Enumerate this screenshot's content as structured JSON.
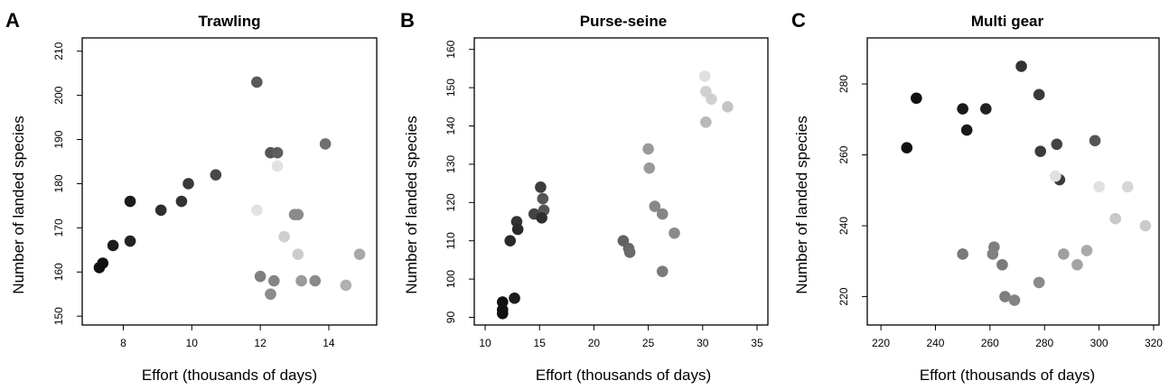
{
  "chart_data": [
    {
      "type": "scatter",
      "panel_label": "A",
      "title": "Trawling",
      "xlabel": "Effort (thousands of days)",
      "ylabel": "Number of landed species",
      "xlim": [
        6.8,
        15.4
      ],
      "ylim": [
        148,
        213
      ],
      "xticks": [
        8,
        10,
        12,
        14
      ],
      "yticks": [
        150,
        160,
        170,
        180,
        190,
        200,
        210
      ],
      "grid": false,
      "points": [
        {
          "x": 7.3,
          "y": 161,
          "shade": "#111111"
        },
        {
          "x": 7.4,
          "y": 162,
          "shade": "#111111"
        },
        {
          "x": 7.7,
          "y": 166,
          "shade": "#1c1c1c"
        },
        {
          "x": 8.2,
          "y": 167,
          "shade": "#232323"
        },
        {
          "x": 8.2,
          "y": 176,
          "shade": "#1c1c1c"
        },
        {
          "x": 9.1,
          "y": 174,
          "shade": "#2e2e2e"
        },
        {
          "x": 9.7,
          "y": 176,
          "shade": "#333333"
        },
        {
          "x": 9.9,
          "y": 180,
          "shade": "#3a3a3a"
        },
        {
          "x": 10.7,
          "y": 182,
          "shade": "#484848"
        },
        {
          "x": 11.9,
          "y": 203,
          "shade": "#5a5a5a"
        },
        {
          "x": 12.3,
          "y": 187,
          "shade": "#555555"
        },
        {
          "x": 12.5,
          "y": 187,
          "shade": "#5e5e5e"
        },
        {
          "x": 13.9,
          "y": 189,
          "shade": "#707070"
        },
        {
          "x": 12.5,
          "y": 184,
          "shade": "#e2e2e2"
        },
        {
          "x": 11.9,
          "y": 174,
          "shade": "#e2e2e2"
        },
        {
          "x": 12.7,
          "y": 168,
          "shade": "#cfcfcf"
        },
        {
          "x": 13.0,
          "y": 173,
          "shade": "#8a8a8a"
        },
        {
          "x": 13.1,
          "y": 173,
          "shade": "#8a8a8a"
        },
        {
          "x": 13.1,
          "y": 164,
          "shade": "#cccccc"
        },
        {
          "x": 12.0,
          "y": 159,
          "shade": "#808080"
        },
        {
          "x": 12.4,
          "y": 158,
          "shade": "#858585"
        },
        {
          "x": 12.3,
          "y": 155,
          "shade": "#8c8c8c"
        },
        {
          "x": 13.2,
          "y": 158,
          "shade": "#9a9a9a"
        },
        {
          "x": 13.6,
          "y": 158,
          "shade": "#8a8a8a"
        },
        {
          "x": 14.5,
          "y": 157,
          "shade": "#b0b0b0"
        },
        {
          "x": 14.9,
          "y": 164,
          "shade": "#a8a8a8"
        }
      ]
    },
    {
      "type": "scatter",
      "panel_label": "B",
      "title": "Purse-seine",
      "xlabel": "Effort (thousands of days)",
      "ylabel": "Number of landed species",
      "xlim": [
        9,
        36
      ],
      "ylim": [
        88,
        163
      ],
      "xticks": [
        10,
        15,
        20,
        25,
        30,
        35
      ],
      "yticks": [
        90,
        100,
        110,
        120,
        130,
        140,
        150,
        160
      ],
      "grid": false,
      "points": [
        {
          "x": 11.6,
          "y": 94,
          "shade": "#111111"
        },
        {
          "x": 11.6,
          "y": 92,
          "shade": "#111111"
        },
        {
          "x": 11.6,
          "y": 91,
          "shade": "#111111"
        },
        {
          "x": 12.7,
          "y": 95,
          "shade": "#1c1c1c"
        },
        {
          "x": 12.3,
          "y": 110,
          "shade": "#2a2a2a"
        },
        {
          "x": 12.9,
          "y": 115,
          "shade": "#333333"
        },
        {
          "x": 13.0,
          "y": 113,
          "shade": "#2a2a2a"
        },
        {
          "x": 14.5,
          "y": 117,
          "shade": "#444444"
        },
        {
          "x": 15.1,
          "y": 124,
          "shade": "#3c3c3c"
        },
        {
          "x": 15.3,
          "y": 121,
          "shade": "#555555"
        },
        {
          "x": 15.4,
          "y": 118,
          "shade": "#555555"
        },
        {
          "x": 15.2,
          "y": 116,
          "shade": "#2e2e2e"
        },
        {
          "x": 22.7,
          "y": 110,
          "shade": "#626262"
        },
        {
          "x": 23.2,
          "y": 108,
          "shade": "#666666"
        },
        {
          "x": 23.3,
          "y": 107,
          "shade": "#6a6a6a"
        },
        {
          "x": 25.0,
          "y": 134,
          "shade": "#9a9a9a"
        },
        {
          "x": 25.1,
          "y": 129,
          "shade": "#9a9a9a"
        },
        {
          "x": 25.6,
          "y": 119,
          "shade": "#888888"
        },
        {
          "x": 26.3,
          "y": 117,
          "shade": "#858585"
        },
        {
          "x": 26.3,
          "y": 102,
          "shade": "#7a7a7a"
        },
        {
          "x": 27.4,
          "y": 112,
          "shade": "#8a8a8a"
        },
        {
          "x": 30.2,
          "y": 153,
          "shade": "#e0e0e0"
        },
        {
          "x": 30.3,
          "y": 149,
          "shade": "#d0d0d0"
        },
        {
          "x": 30.8,
          "y": 147,
          "shade": "#d0d0d0"
        },
        {
          "x": 30.3,
          "y": 141,
          "shade": "#b8b8b8"
        },
        {
          "x": 32.3,
          "y": 145,
          "shade": "#c4c4c4"
        }
      ]
    },
    {
      "type": "scatter",
      "panel_label": "C",
      "title": "Multi gear",
      "xlabel": "Effort (thousands of days)",
      "ylabel": "Number of landed species",
      "xlim": [
        215,
        322
      ],
      "ylim": [
        212,
        293
      ],
      "xticks": [
        220,
        240,
        260,
        280,
        300,
        320
      ],
      "yticks": [
        220,
        240,
        260,
        280
      ],
      "grid": false,
      "points": [
        {
          "x": 229.5,
          "y": 262,
          "shade": "#111111"
        },
        {
          "x": 233,
          "y": 276,
          "shade": "#111111"
        },
        {
          "x": 250,
          "y": 273,
          "shade": "#1a1a1a"
        },
        {
          "x": 251.5,
          "y": 267,
          "shade": "#1a1a1a"
        },
        {
          "x": 258.5,
          "y": 273,
          "shade": "#222222"
        },
        {
          "x": 271.5,
          "y": 285,
          "shade": "#333333"
        },
        {
          "x": 278,
          "y": 277,
          "shade": "#3a3a3a"
        },
        {
          "x": 278.5,
          "y": 261,
          "shade": "#3a3a3a"
        },
        {
          "x": 284.5,
          "y": 263,
          "shade": "#444444"
        },
        {
          "x": 285.5,
          "y": 253,
          "shade": "#3c3c3c"
        },
        {
          "x": 284,
          "y": 254,
          "shade": "#e0e0e0"
        },
        {
          "x": 298.5,
          "y": 264,
          "shade": "#555555"
        },
        {
          "x": 300,
          "y": 251,
          "shade": "#e0e0e0"
        },
        {
          "x": 310.5,
          "y": 251,
          "shade": "#d6d6d6"
        },
        {
          "x": 306,
          "y": 242,
          "shade": "#c8c8c8"
        },
        {
          "x": 317,
          "y": 240,
          "shade": "#cacaca"
        },
        {
          "x": 250,
          "y": 232,
          "shade": "#7a7a7a"
        },
        {
          "x": 261.5,
          "y": 234,
          "shade": "#7e7e7e"
        },
        {
          "x": 261,
          "y": 232,
          "shade": "#808080"
        },
        {
          "x": 264.5,
          "y": 229,
          "shade": "#7a7a7a"
        },
        {
          "x": 265.5,
          "y": 220,
          "shade": "#7e7e7e"
        },
        {
          "x": 269,
          "y": 219,
          "shade": "#848484"
        },
        {
          "x": 278,
          "y": 224,
          "shade": "#8a8a8a"
        },
        {
          "x": 287,
          "y": 232,
          "shade": "#9e9e9e"
        },
        {
          "x": 292,
          "y": 229,
          "shade": "#a4a4a4"
        },
        {
          "x": 295.5,
          "y": 233,
          "shade": "#aaaaaa"
        }
      ]
    }
  ]
}
